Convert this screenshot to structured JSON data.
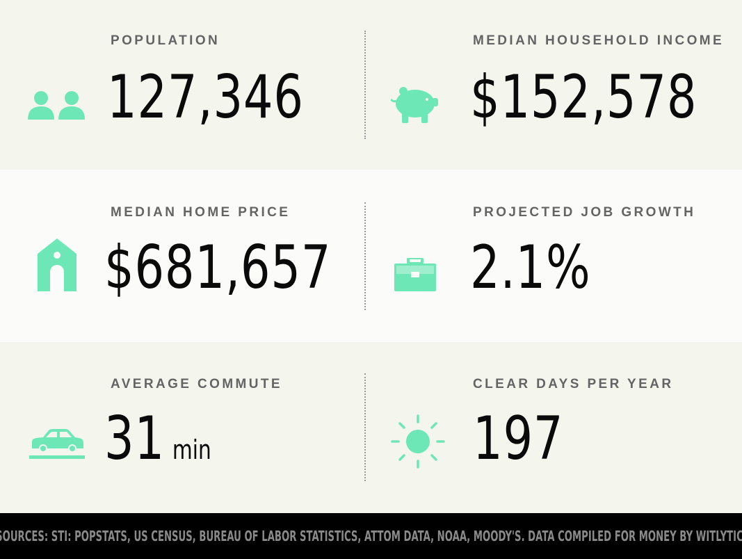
{
  "accent_color": "#6ee7b7",
  "stats": {
    "population": {
      "label": "POPULATION",
      "value": "127,346",
      "icon": "people-icon"
    },
    "income": {
      "label": "MEDIAN HOUSEHOLD INCOME",
      "value": "$152,578",
      "icon": "piggy-bank-icon"
    },
    "home_price": {
      "label": "MEDIAN HOME PRICE",
      "value": "$681,657",
      "icon": "house-icon"
    },
    "job_growth": {
      "label": "PROJECTED JOB GROWTH",
      "value": "2.1%",
      "icon": "briefcase-icon"
    },
    "commute": {
      "label": "AVERAGE COMMUTE",
      "value": "31",
      "unit": "min",
      "icon": "car-icon"
    },
    "clear_days": {
      "label": "CLEAR DAYS PER YEAR",
      "value": "197",
      "icon": "sun-icon"
    }
  },
  "footer": {
    "sources": "SOURCES: STI: POPSTATS, US CENSUS, BUREAU OF LABOR STATISTICS, ATTOM DATA, NOAA, MOODY'S. DATA COMPILED FOR MONEY BY WITLYTIC."
  }
}
